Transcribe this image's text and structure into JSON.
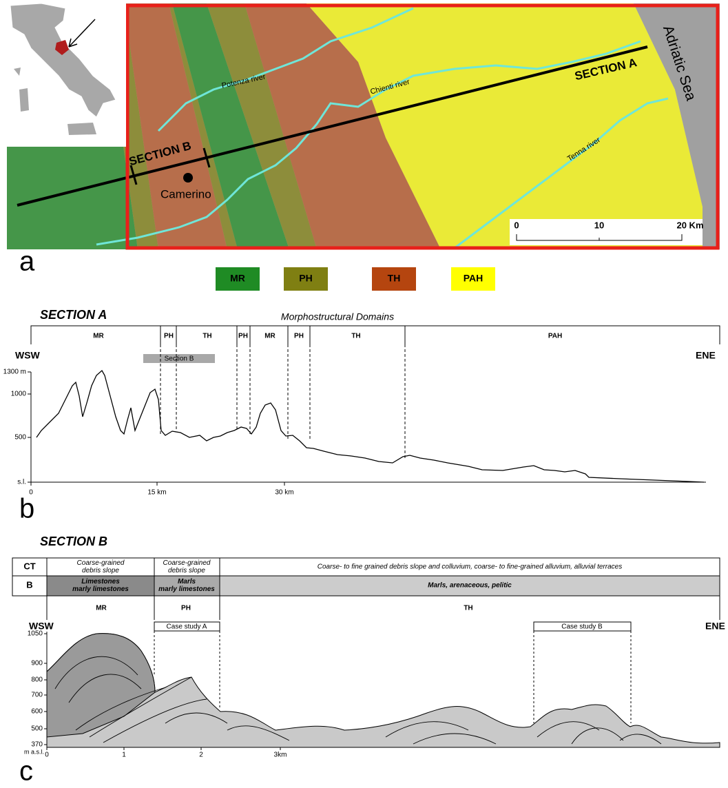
{
  "map": {
    "section_a": "SECTION A",
    "section_b": "SECTION B",
    "town": "Camerino",
    "rivers": [
      "Potenza river",
      "Chienti river",
      "Tenna river"
    ],
    "sea": "Adriatic Sea",
    "scale": [
      "0",
      "10",
      "20 Km"
    ]
  },
  "panel_labels": [
    "a",
    "b",
    "c"
  ],
  "legend": [
    {
      "label": "MR",
      "color": "#1f8b24"
    },
    {
      "label": "PH",
      "color": "#7f7f12"
    },
    {
      "label": "TH",
      "color": "#b5450f"
    },
    {
      "label": "PAH",
      "color": "#ffff00"
    }
  ],
  "section_a": {
    "title": "SECTION A",
    "domains_title": "Morphostructural Domains",
    "domains": [
      "MR",
      "PH",
      "TH",
      "PH",
      "MR",
      "PH",
      "TH",
      "PAH"
    ],
    "west": "WSW",
    "east": "ENE",
    "inset_label": "Section B",
    "y_labels": [
      "1300 m",
      "1000",
      "500",
      "s.l."
    ],
    "x_labels": [
      "0",
      "15 km",
      "30 km"
    ]
  },
  "section_b": {
    "title": "SECTION B",
    "table": {
      "rows": [
        [
          [
            "CT"
          ],
          [
            "Coarse-grained",
            "debris slope"
          ],
          [
            "Coarse-grained",
            "debris slope"
          ],
          [
            "Coarse- to fine grained debris slope and colluvium, coarse- to fine-grained alluvium, alluvial terraces"
          ]
        ],
        [
          [
            "B"
          ],
          [
            "Limestones",
            "marly limestones"
          ],
          [
            "Marls",
            "marly limestones"
          ],
          [
            "Marls, arenaceous, pelitic"
          ]
        ]
      ]
    },
    "domains": [
      "MR",
      "PH",
      "TH"
    ],
    "case_studies": [
      "Case study A",
      "Case study B"
    ],
    "west": "WSW",
    "east": "ENE",
    "y_labels": [
      "1050",
      "900",
      "800",
      "700",
      "600",
      "500",
      "370"
    ],
    "y_unit": "m a.s.l.",
    "x_labels": [
      "0",
      "1",
      "2",
      "3km"
    ]
  }
}
